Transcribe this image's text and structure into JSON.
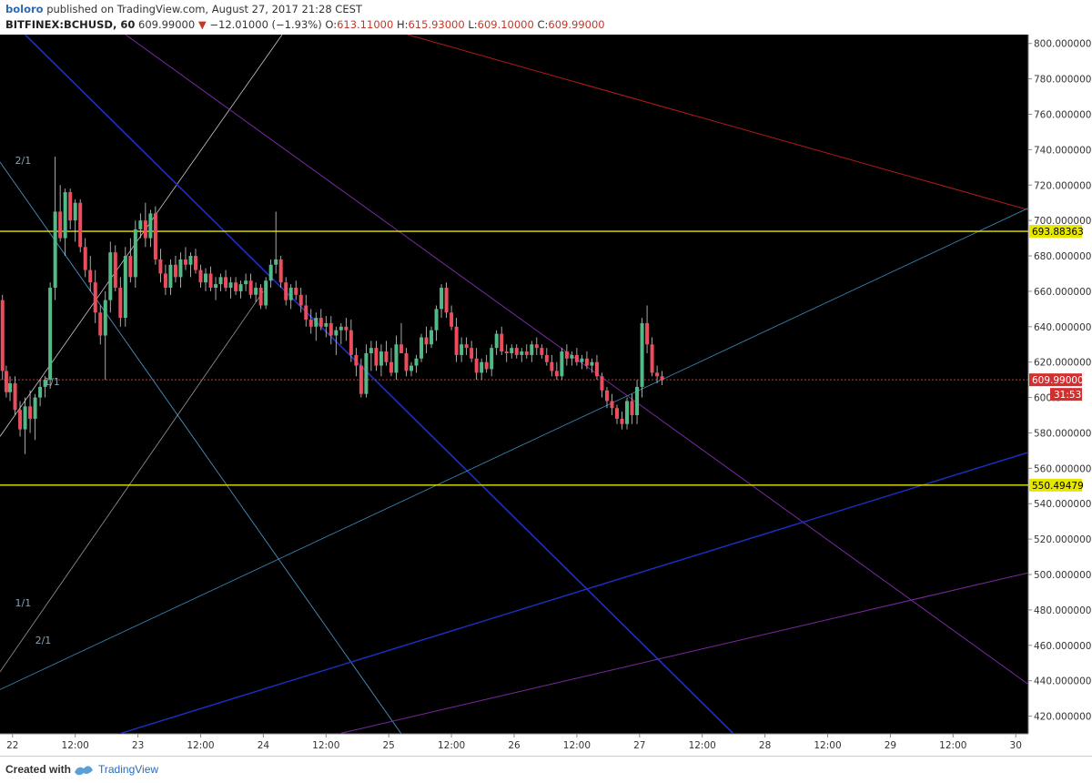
{
  "header": {
    "publisher": "boloro",
    "published_text": "published on TradingView.com, August 27, 2017 21:28 CEST",
    "symbol": "BITFINEX:BCHUSD, 60",
    "last": "609.99000",
    "change": "−12.01000 (−1.93%)",
    "o_label": "O:",
    "o_value": "613.11000",
    "h_label": "H:",
    "h_value": "615.93000",
    "l_label": "L:",
    "l_value": "609.10000",
    "c_label": "C:",
    "c_value": "609.99000",
    "down_arrow": "▼"
  },
  "footer": {
    "created_with": "Created with",
    "brand": "TradingView"
  },
  "colors": {
    "background": "#000000",
    "up": "#53b987",
    "down": "#eb4d5c",
    "level": "#e6e600",
    "price_tag": "#d32f2f"
  },
  "chart_data": {
    "type": "candlestick",
    "symbol": "BITFINEX:BCHUSD",
    "interval": "60",
    "ylim": [
      410,
      805
    ],
    "y_ticks": [
      "800.000000",
      "780.000000",
      "760.000000",
      "740.000000",
      "720.000000",
      "700.000000",
      "680.000000",
      "660.000000",
      "640.000000",
      "620.000000",
      "600.0",
      "580.000000",
      "560.000000",
      "540.000000",
      "520.000000",
      "500.000000",
      "480.000000",
      "460.000000",
      "440.000000",
      "420.000000"
    ],
    "x_range_days": [
      21.9,
      30.1
    ],
    "x_ticks": [
      {
        "d": 22.0,
        "label": "22"
      },
      {
        "d": 22.5,
        "label": "12:00"
      },
      {
        "d": 23.0,
        "label": "23"
      },
      {
        "d": 23.5,
        "label": "12:00"
      },
      {
        "d": 24.0,
        "label": "24"
      },
      {
        "d": 24.5,
        "label": "12:00"
      },
      {
        "d": 25.0,
        "label": "25"
      },
      {
        "d": 25.5,
        "label": "12:00"
      },
      {
        "d": 26.0,
        "label": "26"
      },
      {
        "d": 26.5,
        "label": "12:00"
      },
      {
        "d": 27.0,
        "label": "27"
      },
      {
        "d": 27.5,
        "label": "12:00"
      },
      {
        "d": 28.0,
        "label": "28"
      },
      {
        "d": 28.5,
        "label": "12:00"
      },
      {
        "d": 29.0,
        "label": "29"
      },
      {
        "d": 29.5,
        "label": "12:00"
      },
      {
        "d": 30.0,
        "label": "30"
      }
    ],
    "horizontal_levels": [
      {
        "price": 693.88363,
        "label": "693.88363"
      },
      {
        "price": 550.49479,
        "label": "550.49479"
      }
    ],
    "last_price": {
      "price": 609.99,
      "label": "609.99000",
      "countdown": "31:53"
    },
    "annotations": [
      {
        "d": 22.02,
        "price": 732,
        "text": "2/1"
      },
      {
        "d": 22.25,
        "price": 607,
        "text": "1/1"
      },
      {
        "d": 22.02,
        "price": 482,
        "text": "1/1"
      },
      {
        "d": 22.18,
        "price": 461,
        "text": "2/1"
      }
    ],
    "trend_lines": [
      {
        "from": [
          21.9,
          578
        ],
        "to": [
          24.15,
          805
        ],
        "color": "#c8c8c8",
        "width": 0.8
      },
      {
        "from": [
          21.9,
          733
        ],
        "to": [
          25.1,
          410
        ],
        "color": "#4a90c2",
        "width": 0.9
      },
      {
        "from": [
          21.9,
          445
        ],
        "to": [
          24.0,
          660
        ],
        "color": "#9a9a9a",
        "width": 0.8
      },
      {
        "from": [
          22.1,
          805
        ],
        "to": [
          27.75,
          410
        ],
        "color": "#1e2fc8",
        "width": 1.6
      },
      {
        "from": [
          22.9,
          805
        ],
        "to": [
          30.1,
          438
        ],
        "color": "#7a2aa0",
        "width": 1.0
      },
      {
        "from": [
          25.15,
          805
        ],
        "to": [
          30.1,
          706
        ],
        "color": "#b31b1b",
        "width": 1.0
      },
      {
        "from": [
          21.9,
          435
        ],
        "to": [
          30.1,
          707
        ],
        "color": "#3d8fbf",
        "width": 0.8
      },
      {
        "from": [
          22.85,
          410
        ],
        "to": [
          30.1,
          569
        ],
        "color": "#1e2fc8",
        "width": 1.4
      },
      {
        "from": [
          24.6,
          410
        ],
        "to": [
          30.1,
          501
        ],
        "color": "#7a2aa0",
        "width": 1.0
      }
    ],
    "candles": [
      [
        21.92,
        655,
        658,
        610,
        615
      ],
      [
        21.95,
        615,
        618,
        600,
        603
      ],
      [
        21.98,
        603,
        612,
        598,
        608
      ],
      [
        22.02,
        608,
        612,
        590,
        593
      ],
      [
        22.06,
        593,
        598,
        578,
        582
      ],
      [
        22.1,
        582,
        600,
        568,
        595
      ],
      [
        22.14,
        595,
        604,
        580,
        588
      ],
      [
        22.18,
        588,
        602,
        576,
        600
      ],
      [
        22.22,
        600,
        610,
        595,
        606
      ],
      [
        22.26,
        606,
        612,
        600,
        610
      ],
      [
        22.3,
        610,
        665,
        605,
        662
      ],
      [
        22.34,
        662,
        736,
        655,
        705
      ],
      [
        22.38,
        705,
        720,
        688,
        690
      ],
      [
        22.42,
        690,
        718,
        680,
        716
      ],
      [
        22.46,
        716,
        718,
        695,
        700
      ],
      [
        22.5,
        700,
        712,
        688,
        710
      ],
      [
        22.54,
        710,
        712,
        682,
        685
      ],
      [
        22.58,
        685,
        690,
        668,
        672
      ],
      [
        22.62,
        672,
        680,
        660,
        665
      ],
      [
        22.66,
        665,
        672,
        642,
        648
      ],
      [
        22.7,
        648,
        652,
        630,
        635
      ],
      [
        22.74,
        635,
        660,
        610,
        655
      ],
      [
        22.78,
        655,
        688,
        648,
        682
      ],
      [
        22.82,
        682,
        686,
        660,
        662
      ],
      [
        22.86,
        662,
        668,
        640,
        645
      ],
      [
        22.9,
        645,
        685,
        640,
        680
      ],
      [
        22.94,
        680,
        690,
        665,
        668
      ],
      [
        22.98,
        668,
        700,
        662,
        695
      ],
      [
        23.02,
        695,
        704,
        690,
        700
      ],
      [
        23.06,
        700,
        710,
        685,
        690
      ],
      [
        23.1,
        690,
        706,
        685,
        704
      ],
      [
        23.14,
        704,
        708,
        675,
        678
      ],
      [
        23.18,
        678,
        684,
        665,
        670
      ],
      [
        23.22,
        670,
        675,
        658,
        662
      ],
      [
        23.26,
        662,
        678,
        658,
        675
      ],
      [
        23.3,
        675,
        680,
        665,
        668
      ],
      [
        23.34,
        668,
        682,
        662,
        678
      ],
      [
        23.38,
        678,
        685,
        672,
        675
      ],
      [
        23.42,
        675,
        682,
        668,
        680
      ],
      [
        23.46,
        680,
        684,
        670,
        672
      ],
      [
        23.5,
        672,
        675,
        662,
        665
      ],
      [
        23.54,
        665,
        673,
        660,
        670
      ],
      [
        23.58,
        670,
        674,
        660,
        662
      ],
      [
        23.62,
        662,
        668,
        655,
        664
      ],
      [
        23.66,
        664,
        670,
        660,
        668
      ],
      [
        23.7,
        668,
        672,
        660,
        662
      ],
      [
        23.74,
        662,
        668,
        656,
        665
      ],
      [
        23.78,
        665,
        668,
        658,
        660
      ],
      [
        23.82,
        660,
        666,
        656,
        664
      ],
      [
        23.86,
        664,
        670,
        660,
        666
      ],
      [
        23.9,
        666,
        670,
        656,
        658
      ],
      [
        23.94,
        658,
        665,
        654,
        662
      ],
      [
        23.98,
        662,
        664,
        650,
        652
      ],
      [
        24.02,
        652,
        668,
        650,
        666
      ],
      [
        24.06,
        666,
        678,
        662,
        675
      ],
      [
        24.1,
        675,
        705,
        670,
        678
      ],
      [
        24.14,
        678,
        680,
        662,
        665
      ],
      [
        24.18,
        665,
        668,
        652,
        655
      ],
      [
        24.22,
        655,
        664,
        650,
        662
      ],
      [
        24.26,
        662,
        666,
        655,
        658
      ],
      [
        24.3,
        658,
        662,
        648,
        652
      ],
      [
        24.34,
        652,
        658,
        640,
        644
      ],
      [
        24.38,
        644,
        650,
        636,
        640
      ],
      [
        24.42,
        640,
        648,
        632,
        645
      ],
      [
        24.46,
        645,
        650,
        638,
        640
      ],
      [
        24.5,
        640,
        646,
        634,
        642
      ],
      [
        24.54,
        642,
        646,
        630,
        635
      ],
      [
        24.58,
        635,
        640,
        624,
        638
      ],
      [
        24.62,
        638,
        642,
        630,
        640
      ],
      [
        24.66,
        640,
        645,
        632,
        638
      ],
      [
        24.7,
        638,
        644,
        620,
        624
      ],
      [
        24.74,
        624,
        628,
        612,
        618
      ],
      [
        24.78,
        618,
        622,
        600,
        602
      ],
      [
        24.82,
        602,
        630,
        600,
        625
      ],
      [
        24.86,
        625,
        632,
        615,
        628
      ],
      [
        24.9,
        628,
        632,
        615,
        618
      ],
      [
        24.94,
        618,
        630,
        612,
        626
      ],
      [
        24.98,
        626,
        632,
        618,
        620
      ],
      [
        25.02,
        620,
        628,
        612,
        614
      ],
      [
        25.06,
        614,
        635,
        610,
        630
      ],
      [
        25.1,
        630,
        642,
        626,
        625
      ],
      [
        25.14,
        625,
        628,
        612,
        615
      ],
      [
        25.18,
        615,
        620,
        612,
        618
      ],
      [
        25.22,
        618,
        624,
        614,
        622
      ],
      [
        25.26,
        622,
        636,
        620,
        634
      ],
      [
        25.3,
        634,
        640,
        625,
        630
      ],
      [
        25.34,
        630,
        640,
        628,
        638
      ],
      [
        25.38,
        638,
        652,
        632,
        650
      ],
      [
        25.42,
        650,
        664,
        645,
        662
      ],
      [
        25.46,
        662,
        665,
        645,
        648
      ],
      [
        25.5,
        648,
        652,
        638,
        640
      ],
      [
        25.54,
        640,
        645,
        620,
        624
      ],
      [
        25.58,
        624,
        634,
        620,
        630
      ],
      [
        25.62,
        630,
        634,
        624,
        628
      ],
      [
        25.66,
        628,
        632,
        620,
        622
      ],
      [
        25.7,
        622,
        628,
        610,
        614
      ],
      [
        25.74,
        614,
        622,
        610,
        620
      ],
      [
        25.78,
        620,
        624,
        614,
        616
      ],
      [
        25.82,
        616,
        630,
        612,
        628
      ],
      [
        25.86,
        628,
        638,
        624,
        636
      ],
      [
        25.9,
        636,
        640,
        624,
        626
      ],
      [
        25.94,
        626,
        630,
        620,
        625
      ],
      [
        25.98,
        625,
        630,
        622,
        628
      ],
      [
        26.02,
        628,
        630,
        622,
        624
      ],
      [
        26.06,
        624,
        628,
        620,
        626
      ],
      [
        26.1,
        626,
        630,
        622,
        624
      ],
      [
        26.14,
        624,
        632,
        620,
        630
      ],
      [
        26.18,
        630,
        634,
        624,
        628
      ],
      [
        26.22,
        628,
        630,
        622,
        624
      ],
      [
        26.26,
        624,
        628,
        618,
        620
      ],
      [
        26.3,
        620,
        624,
        612,
        615
      ],
      [
        26.34,
        615,
        620,
        610,
        612
      ],
      [
        26.38,
        612,
        628,
        610,
        626
      ],
      [
        26.42,
        626,
        630,
        618,
        622
      ],
      [
        26.46,
        622,
        626,
        618,
        624
      ],
      [
        26.5,
        624,
        628,
        618,
        620
      ],
      [
        26.54,
        620,
        624,
        616,
        622
      ],
      [
        26.58,
        622,
        626,
        616,
        618
      ],
      [
        26.62,
        618,
        622,
        614,
        620
      ],
      [
        26.66,
        620,
        624,
        610,
        612
      ],
      [
        26.7,
        612,
        614,
        600,
        604
      ],
      [
        26.74,
        604,
        606,
        594,
        598
      ],
      [
        26.78,
        598,
        602,
        590,
        594
      ],
      [
        26.82,
        594,
        596,
        585,
        588
      ],
      [
        26.86,
        588,
        592,
        582,
        585
      ],
      [
        26.9,
        585,
        600,
        582,
        598
      ],
      [
        26.94,
        598,
        602,
        585,
        590
      ],
      [
        26.98,
        590,
        610,
        585,
        606
      ],
      [
        27.02,
        606,
        645,
        600,
        642
      ],
      [
        27.06,
        642,
        652,
        625,
        630
      ],
      [
        27.1,
        630,
        634,
        612,
        614
      ],
      [
        27.14,
        614,
        618,
        608,
        612
      ],
      [
        27.18,
        612,
        615,
        607,
        610
      ]
    ]
  }
}
